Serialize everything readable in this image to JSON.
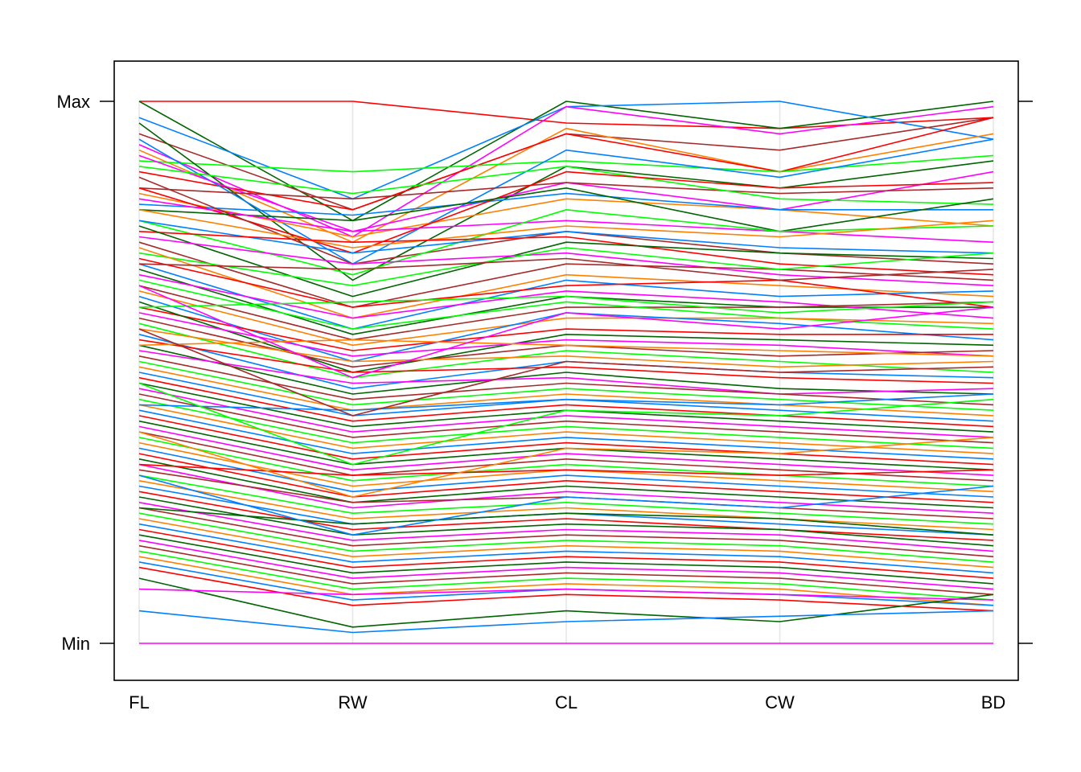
{
  "chart_data": {
    "type": "parallel-coordinates",
    "axes": [
      "FL",
      "RW",
      "CL",
      "CW",
      "BD"
    ],
    "y_tick_labels": [
      "Min",
      "Max"
    ],
    "ylim": [
      0,
      1
    ],
    "grid": "vertical",
    "palette": [
      "#0080ff",
      "#ff00ff",
      "#006400",
      "#ff0000",
      "#ff8000",
      "#00ff00",
      "#a52a2a"
    ],
    "series": [
      {
        "color": "#ff0000",
        "values": [
          1.0,
          1.0,
          0.96,
          0.95,
          0.97
        ]
      },
      {
        "color": "#006400",
        "values": [
          1.0,
          0.78,
          1.0,
          0.95,
          1.0
        ]
      },
      {
        "color": "#0080ff",
        "values": [
          0.97,
          0.82,
          0.99,
          1.0,
          0.93
        ]
      },
      {
        "color": "#ff00ff",
        "values": [
          0.92,
          0.75,
          0.99,
          0.94,
          0.99
        ]
      },
      {
        "color": "#a52a2a",
        "values": [
          0.94,
          0.8,
          0.94,
          0.91,
          0.97
        ]
      },
      {
        "color": "#ff8000",
        "values": [
          0.91,
          0.74,
          0.95,
          0.87,
          0.94
        ]
      },
      {
        "color": "#ff0000",
        "values": [
          0.87,
          0.8,
          0.94,
          0.87,
          0.97
        ]
      },
      {
        "color": "#00ff00",
        "values": [
          0.89,
          0.87,
          0.89,
          0.87,
          0.9
        ]
      },
      {
        "color": "#006400",
        "values": [
          0.96,
          0.67,
          0.88,
          0.84,
          0.89
        ]
      },
      {
        "color": "#0080ff",
        "values": [
          0.93,
          0.7,
          0.91,
          0.86,
          0.93
        ]
      },
      {
        "color": "#ff00ff",
        "values": [
          0.9,
          0.76,
          0.85,
          0.8,
          0.87
        ]
      },
      {
        "color": "#a52a2a",
        "values": [
          0.84,
          0.82,
          0.85,
          0.83,
          0.84
        ]
      },
      {
        "color": "#00ff00",
        "values": [
          0.88,
          0.83,
          0.88,
          0.82,
          0.81
        ]
      },
      {
        "color": "#ff8000",
        "values": [
          0.83,
          0.75,
          0.82,
          0.8,
          0.77
        ]
      },
      {
        "color": "#0080ff",
        "values": [
          0.81,
          0.79,
          0.83,
          0.8,
          0.8
        ]
      },
      {
        "color": "#ff0000",
        "values": [
          0.84,
          0.72,
          0.87,
          0.84,
          0.85
        ]
      },
      {
        "color": "#006400",
        "values": [
          0.8,
          0.78,
          0.84,
          0.76,
          0.82
        ]
      },
      {
        "color": "#ff00ff",
        "values": [
          0.82,
          0.76,
          0.78,
          0.76,
          0.74
        ]
      },
      {
        "color": "#a52a2a",
        "values": [
          0.86,
          0.7,
          0.76,
          0.72,
          0.7
        ]
      },
      {
        "color": "#00ff00",
        "values": [
          0.78,
          0.68,
          0.8,
          0.76,
          0.77
        ]
      },
      {
        "color": "#ff8000",
        "values": [
          0.8,
          0.73,
          0.77,
          0.75,
          0.78
        ]
      },
      {
        "color": "#0080ff",
        "values": [
          0.78,
          0.72,
          0.76,
          0.73,
          0.72
        ]
      },
      {
        "color": "#ff0000",
        "values": [
          0.76,
          0.74,
          0.75,
          0.7,
          0.68
        ]
      },
      {
        "color": "#006400",
        "values": [
          0.77,
          0.64,
          0.74,
          0.72,
          0.71
        ]
      },
      {
        "color": "#ff00ff",
        "values": [
          0.75,
          0.7,
          0.72,
          0.68,
          0.66
        ]
      },
      {
        "color": "#a52a2a",
        "values": [
          0.74,
          0.62,
          0.7,
          0.69,
          0.67
        ]
      },
      {
        "color": "#00ff00",
        "values": [
          0.72,
          0.66,
          0.73,
          0.69,
          0.72
        ]
      },
      {
        "color": "#ff8000",
        "values": [
          0.73,
          0.6,
          0.68,
          0.66,
          0.64
        ]
      },
      {
        "color": "#0080ff",
        "values": [
          0.7,
          0.58,
          0.67,
          0.64,
          0.65
        ]
      },
      {
        "color": "#ff0000",
        "values": [
          0.71,
          0.62,
          0.66,
          0.67,
          0.62
        ]
      },
      {
        "color": "#006400",
        "values": [
          0.69,
          0.57,
          0.64,
          0.62,
          0.62
        ]
      },
      {
        "color": "#ff00ff",
        "values": [
          0.68,
          0.6,
          0.65,
          0.63,
          0.6
        ]
      },
      {
        "color": "#a52a2a",
        "values": [
          0.66,
          0.56,
          0.62,
          0.62,
          0.63
        ]
      },
      {
        "color": "#00ff00",
        "values": [
          0.67,
          0.58,
          0.63,
          0.6,
          0.58
        ]
      },
      {
        "color": "#ff8000",
        "values": [
          0.65,
          0.55,
          0.6,
          0.6,
          0.59
        ]
      },
      {
        "color": "#0080ff",
        "values": [
          0.64,
          0.52,
          0.61,
          0.59,
          0.56
        ]
      },
      {
        "color": "#ff0000",
        "values": [
          0.62,
          0.54,
          0.58,
          0.57,
          0.57
        ]
      },
      {
        "color": "#006400",
        "values": [
          0.63,
          0.5,
          0.57,
          0.56,
          0.55
        ]
      },
      {
        "color": "#ff00ff",
        "values": [
          0.61,
          0.53,
          0.56,
          0.55,
          0.53
        ]
      },
      {
        "color": "#a52a2a",
        "values": [
          0.6,
          0.51,
          0.55,
          0.53,
          0.54
        ]
      },
      {
        "color": "#00ff00",
        "values": [
          0.59,
          0.49,
          0.54,
          0.52,
          0.5
        ]
      },
      {
        "color": "#ff8000",
        "values": [
          0.58,
          0.52,
          0.53,
          0.51,
          0.52
        ]
      },
      {
        "color": "#0080ff",
        "values": [
          0.57,
          0.47,
          0.52,
          0.5,
          0.49
        ]
      },
      {
        "color": "#ff0000",
        "values": [
          0.56,
          0.5,
          0.51,
          0.49,
          0.48
        ]
      },
      {
        "color": "#006400",
        "values": [
          0.55,
          0.46,
          0.5,
          0.47,
          0.46
        ]
      },
      {
        "color": "#ff00ff",
        "values": [
          0.54,
          0.48,
          0.49,
          0.46,
          0.47
        ]
      },
      {
        "color": "#a52a2a",
        "values": [
          0.53,
          0.45,
          0.48,
          0.46,
          0.44
        ]
      },
      {
        "color": "#00ff00",
        "values": [
          0.52,
          0.44,
          0.47,
          0.45,
          0.43
        ]
      },
      {
        "color": "#ff8000",
        "values": [
          0.51,
          0.43,
          0.46,
          0.44,
          0.42
        ]
      },
      {
        "color": "#0080ff",
        "values": [
          0.5,
          0.42,
          0.45,
          0.43,
          0.41
        ]
      },
      {
        "color": "#ff0000",
        "values": [
          0.49,
          0.41,
          0.44,
          0.42,
          0.4
        ]
      },
      {
        "color": "#006400",
        "values": [
          0.48,
          0.4,
          0.43,
          0.41,
          0.39
        ]
      },
      {
        "color": "#ff00ff",
        "values": [
          0.47,
          0.39,
          0.42,
          0.4,
          0.38
        ]
      },
      {
        "color": "#a52a2a",
        "values": [
          0.46,
          0.38,
          0.41,
          0.39,
          0.37
        ]
      },
      {
        "color": "#00ff00",
        "values": [
          0.45,
          0.37,
          0.4,
          0.38,
          0.36
        ]
      },
      {
        "color": "#ff8000",
        "values": [
          0.44,
          0.36,
          0.39,
          0.37,
          0.35
        ]
      },
      {
        "color": "#0080ff",
        "values": [
          0.43,
          0.35,
          0.38,
          0.36,
          0.34
        ]
      },
      {
        "color": "#ff0000",
        "values": [
          0.42,
          0.34,
          0.37,
          0.35,
          0.33
        ]
      },
      {
        "color": "#006400",
        "values": [
          0.41,
          0.33,
          0.36,
          0.34,
          0.32
        ]
      },
      {
        "color": "#ff00ff",
        "values": [
          0.4,
          0.32,
          0.35,
          0.33,
          0.31
        ]
      },
      {
        "color": "#a52a2a",
        "values": [
          0.39,
          0.31,
          0.34,
          0.32,
          0.3
        ]
      },
      {
        "color": "#00ff00",
        "values": [
          0.38,
          0.3,
          0.33,
          0.31,
          0.29
        ]
      },
      {
        "color": "#ff8000",
        "values": [
          0.37,
          0.29,
          0.32,
          0.3,
          0.28
        ]
      },
      {
        "color": "#0080ff",
        "values": [
          0.36,
          0.28,
          0.31,
          0.29,
          0.27
        ]
      },
      {
        "color": "#ff0000",
        "values": [
          0.35,
          0.27,
          0.3,
          0.28,
          0.26
        ]
      },
      {
        "color": "#006400",
        "values": [
          0.34,
          0.26,
          0.29,
          0.27,
          0.25
        ]
      },
      {
        "color": "#ff00ff",
        "values": [
          0.33,
          0.25,
          0.28,
          0.26,
          0.24
        ]
      },
      {
        "color": "#a52a2a",
        "values": [
          0.32,
          0.26,
          0.27,
          0.25,
          0.23
        ]
      },
      {
        "color": "#00ff00",
        "values": [
          0.31,
          0.24,
          0.26,
          0.24,
          0.22
        ]
      },
      {
        "color": "#ff8000",
        "values": [
          0.3,
          0.23,
          0.25,
          0.23,
          0.21
        ]
      },
      {
        "color": "#0080ff",
        "values": [
          0.29,
          0.22,
          0.24,
          0.22,
          0.2
        ]
      },
      {
        "color": "#ff0000",
        "values": [
          0.28,
          0.21,
          0.23,
          0.21,
          0.19
        ]
      },
      {
        "color": "#006400",
        "values": [
          0.27,
          0.2,
          0.22,
          0.21,
          0.18
        ]
      },
      {
        "color": "#ff00ff",
        "values": [
          0.26,
          0.19,
          0.21,
          0.2,
          0.17
        ]
      },
      {
        "color": "#a52a2a",
        "values": [
          0.25,
          0.18,
          0.2,
          0.19,
          0.16
        ]
      },
      {
        "color": "#00ff00",
        "values": [
          0.24,
          0.17,
          0.19,
          0.18,
          0.15
        ]
      },
      {
        "color": "#ff8000",
        "values": [
          0.23,
          0.16,
          0.18,
          0.17,
          0.14
        ]
      },
      {
        "color": "#0080ff",
        "values": [
          0.22,
          0.15,
          0.17,
          0.16,
          0.13
        ]
      },
      {
        "color": "#ff0000",
        "values": [
          0.21,
          0.14,
          0.16,
          0.15,
          0.12
        ]
      },
      {
        "color": "#006400",
        "values": [
          0.2,
          0.13,
          0.15,
          0.14,
          0.11
        ]
      },
      {
        "color": "#ff00ff",
        "values": [
          0.19,
          0.12,
          0.14,
          0.13,
          0.1
        ]
      },
      {
        "color": "#a52a2a",
        "values": [
          0.18,
          0.11,
          0.13,
          0.12,
          0.09
        ]
      },
      {
        "color": "#00ff00",
        "values": [
          0.17,
          0.1,
          0.12,
          0.11,
          0.08
        ]
      },
      {
        "color": "#ff8000",
        "values": [
          0.16,
          0.09,
          0.11,
          0.1,
          0.07
        ]
      },
      {
        "color": "#0080ff",
        "values": [
          0.15,
          0.08,
          0.1,
          0.09,
          0.07
        ]
      },
      {
        "color": "#ff0000",
        "values": [
          0.14,
          0.07,
          0.09,
          0.08,
          0.06
        ]
      },
      {
        "color": "#006400",
        "values": [
          0.12,
          0.03,
          0.06,
          0.04,
          0.09
        ]
      },
      {
        "color": "#ff00ff",
        "values": [
          0.1,
          0.09,
          0.1,
          0.09,
          0.08
        ]
      },
      {
        "color": "#0080ff",
        "values": [
          0.06,
          0.02,
          0.04,
          0.05,
          0.06
        ]
      },
      {
        "color": "#ff00ff",
        "values": [
          0.0,
          0.0,
          0.0,
          0.0,
          0.0
        ]
      },
      {
        "color": "#a52a2a",
        "values": [
          0.7,
          0.69,
          0.71,
          0.67,
          0.69
        ]
      },
      {
        "color": "#00ff00",
        "values": [
          0.62,
          0.63,
          0.64,
          0.61,
          0.63
        ]
      },
      {
        "color": "#ff8000",
        "values": [
          0.55,
          0.56,
          0.55,
          0.54,
          0.53
        ]
      },
      {
        "color": "#0080ff",
        "values": [
          0.44,
          0.43,
          0.45,
          0.44,
          0.46
        ]
      },
      {
        "color": "#ff0000",
        "values": [
          0.33,
          0.31,
          0.32,
          0.31,
          0.32
        ]
      },
      {
        "color": "#006400",
        "values": [
          0.25,
          0.22,
          0.24,
          0.23,
          0.2
        ]
      },
      {
        "color": "#ff00ff",
        "values": [
          0.66,
          0.49,
          0.61,
          0.58,
          0.62
        ]
      },
      {
        "color": "#a52a2a",
        "values": [
          0.58,
          0.42,
          0.52,
          0.5,
          0.51
        ]
      },
      {
        "color": "#00ff00",
        "values": [
          0.48,
          0.33,
          0.43,
          0.42,
          0.45
        ]
      },
      {
        "color": "#ff8000",
        "values": [
          0.39,
          0.27,
          0.36,
          0.35,
          0.38
        ]
      },
      {
        "color": "#0080ff",
        "values": [
          0.31,
          0.2,
          0.27,
          0.25,
          0.29
        ]
      }
    ]
  }
}
